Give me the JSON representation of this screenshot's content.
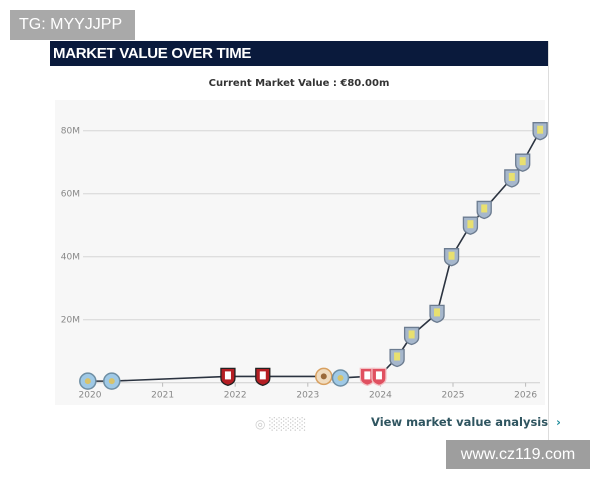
{
  "watermark_top": "TG: MYYJJPP",
  "watermark_bottom": "www.cz119.com",
  "header": {
    "title": "MARKET VALUE OVER TIME"
  },
  "current_value": "Current Market Value : €80.00m",
  "link": {
    "label": "View market value analysis",
    "chevron": "›"
  },
  "colors": {
    "header": "#0a1a3c",
    "line": "#2b3340",
    "grid": "#d6d6d6",
    "plot_bg": "#f7f7f7"
  },
  "clubs": {
    "man-city": {
      "fill": "#9fc9e6",
      "stroke": "#6e8ea3",
      "mark": "#d8c36a"
    },
    "bournemouth": {
      "fill": "#b51e23",
      "stroke": "#222222",
      "mark": "#ffffff"
    },
    "sunburst": {
      "fill": "#f0dcc0",
      "stroke": "#d8a060",
      "mark": "#9a6a3a"
    },
    "middlesbrough": {
      "fill": "#e05060",
      "stroke": "#f2c0c4",
      "mark": "#ffffff"
    },
    "aston-villa": {
      "fill": "#a6b7cc",
      "stroke": "#6c7c90",
      "mark": "#e8e070"
    }
  },
  "chart_data": {
    "type": "line",
    "title": "MARKET VALUE OVER TIME",
    "subtitle": "Current Market Value : €80.00m",
    "xlim": [
      2020,
      2026.2
    ],
    "ylim": [
      0,
      80
    ],
    "x_ticks": [
      "2020",
      "2021",
      "2022",
      "2023",
      "2024",
      "2025",
      "2026"
    ],
    "y_ticks": [
      {
        "v": 20,
        "label": "20M"
      },
      {
        "v": 40,
        "label": "40M"
      },
      {
        "v": 60,
        "label": "60M"
      },
      {
        "v": 80,
        "label": "80M"
      }
    ],
    "grid": true,
    "points": [
      {
        "x": 2019.97,
        "y": 0.5,
        "club": "man-city"
      },
      {
        "x": 2020.3,
        "y": 0.5,
        "club": "man-city"
      },
      {
        "x": 2021.9,
        "y": 2,
        "club": "bournemouth"
      },
      {
        "x": 2022.38,
        "y": 2,
        "club": "bournemouth"
      },
      {
        "x": 2023.22,
        "y": 2,
        "club": "sunburst"
      },
      {
        "x": 2023.45,
        "y": 1.5,
        "club": "man-city"
      },
      {
        "x": 2023.82,
        "y": 2,
        "club": "middlesbrough"
      },
      {
        "x": 2023.98,
        "y": 2,
        "club": "middlesbrough"
      },
      {
        "x": 2024.23,
        "y": 8,
        "club": "aston-villa"
      },
      {
        "x": 2024.43,
        "y": 15,
        "club": "aston-villa"
      },
      {
        "x": 2024.78,
        "y": 22,
        "club": "aston-villa"
      },
      {
        "x": 2024.98,
        "y": 40,
        "club": "aston-villa"
      },
      {
        "x": 2025.24,
        "y": 50,
        "club": "aston-villa"
      },
      {
        "x": 2025.43,
        "y": 55,
        "club": "aston-villa"
      },
      {
        "x": 2025.81,
        "y": 65,
        "club": "aston-villa"
      },
      {
        "x": 2025.96,
        "y": 70,
        "club": "aston-villa"
      },
      {
        "x": 2026.2,
        "y": 80,
        "club": "aston-villa"
      }
    ]
  }
}
